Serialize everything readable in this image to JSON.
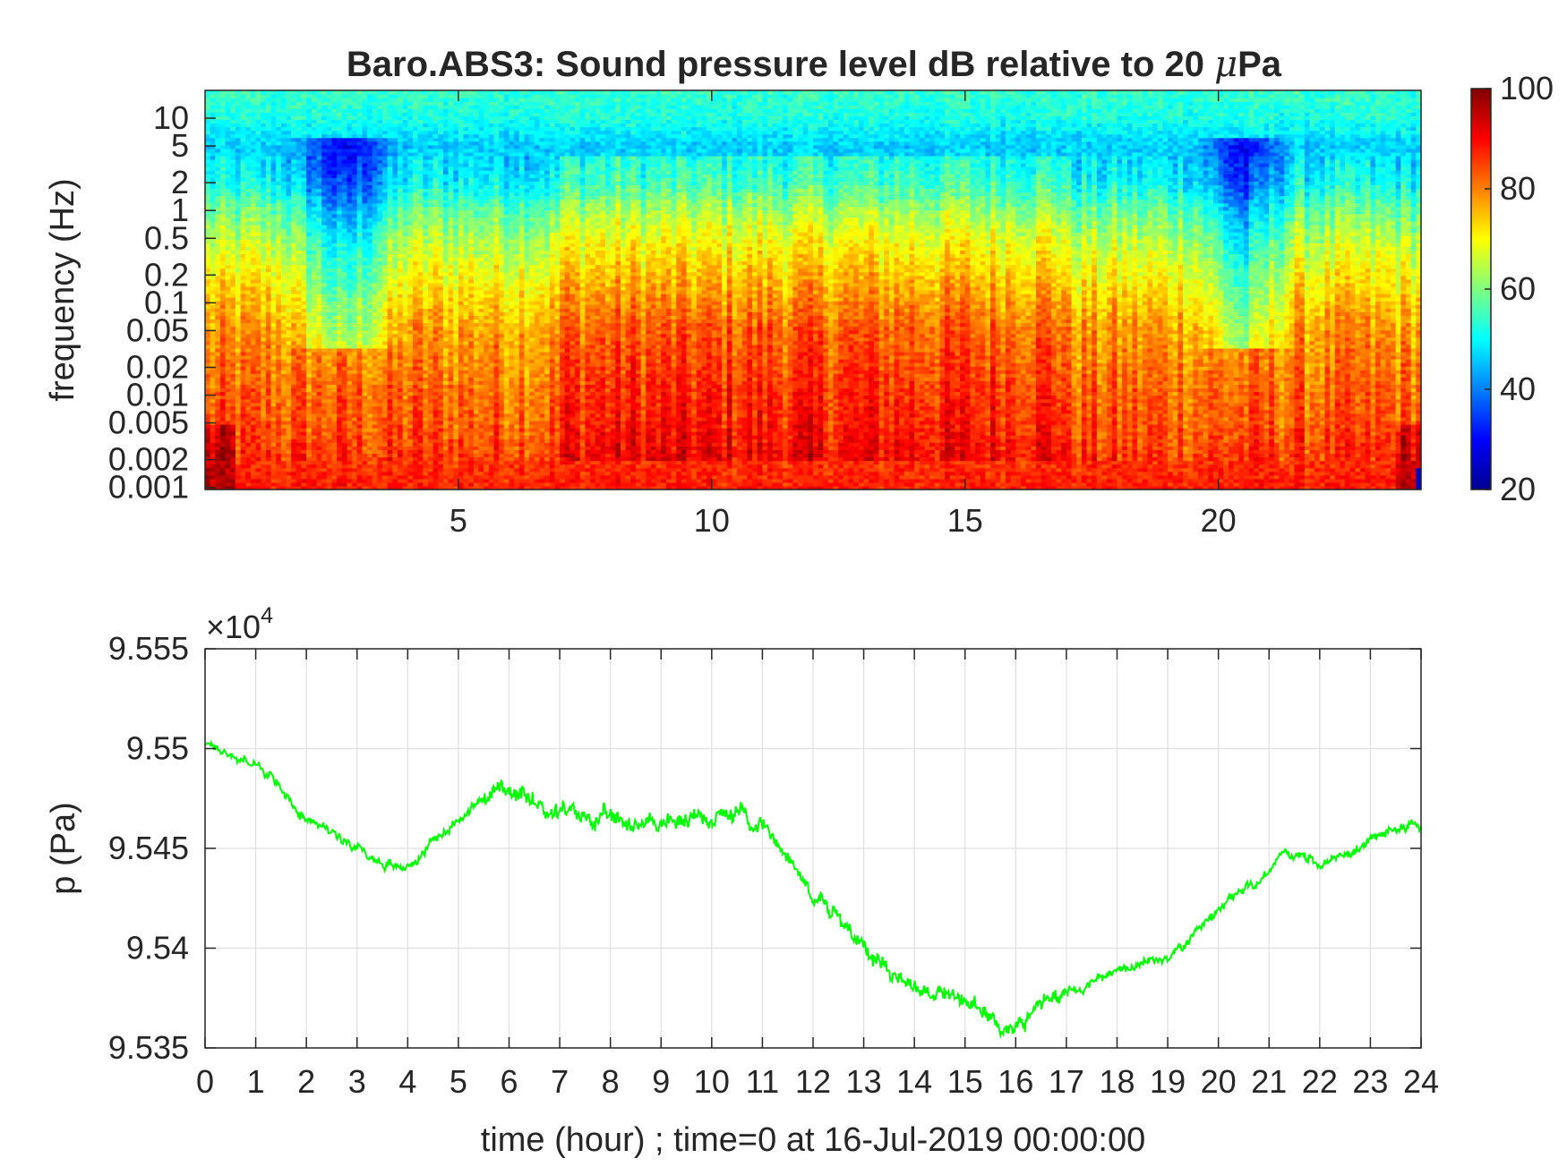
{
  "chart_data": [
    {
      "type": "heatmap",
      "title": "Baro.ABS3: Sound pressure level dB relative to 20 μPa",
      "title_main": "Baro.ABS3: Sound pressure level dB relative to 20 ",
      "title_mu": "μ",
      "title_end": "Pa",
      "ylabel": "frequency (Hz)",
      "xlabel": "",
      "xlim": [
        0,
        24
      ],
      "x_ticks": [
        5,
        10,
        15,
        20
      ],
      "x_tick_labels": [
        "5",
        "10",
        "15",
        "20"
      ],
      "y_scale": "log",
      "y_ticks": [
        0.001,
        0.002,
        0.005,
        0.01,
        0.02,
        0.05,
        0.1,
        0.2,
        0.5,
        1,
        2,
        5,
        10
      ],
      "y_tick_labels": [
        "0.001",
        "0.002",
        "0.005",
        "0.01",
        "0.02",
        "0.05",
        "0.1",
        "0.2",
        "0.5",
        "1",
        "2",
        "5",
        "10"
      ],
      "ylim_hz": [
        0.00095,
        20
      ],
      "colormap": "jet",
      "clim": [
        20,
        100
      ],
      "colorbar_ticks": [
        20,
        40,
        60,
        80,
        100
      ],
      "colorbar_tick_labels": [
        "20",
        "40",
        "60",
        "80",
        "100"
      ],
      "level_profile_db": {
        "frequency_hz": [
          0.001,
          0.002,
          0.005,
          0.01,
          0.02,
          0.05,
          0.1,
          0.2,
          0.5,
          1,
          2,
          5,
          10,
          20
        ],
        "typical_db": [
          88,
          86,
          83,
          82,
          80,
          78,
          74,
          70,
          64,
          58,
          50,
          46,
          52,
          54
        ]
      },
      "quiet_periods_hours": [
        [
          1.5,
          4.0
        ],
        [
          19.5,
          21.5
        ]
      ],
      "loudest_period_hours": [
        7,
        17
      ]
    },
    {
      "type": "line",
      "title": "",
      "xlabel": "time (hour) ; time=0 at 16-Jul-2019 00:00:00",
      "ylabel": "p (Pa)",
      "exponent_label_base": "×10",
      "exponent_label_power": "4",
      "xlim": [
        0,
        24
      ],
      "ylim": [
        95350,
        95550
      ],
      "x_ticks": [
        0,
        1,
        2,
        3,
        4,
        5,
        6,
        7,
        8,
        9,
        10,
        11,
        12,
        13,
        14,
        15,
        16,
        17,
        18,
        19,
        20,
        21,
        22,
        23,
        24
      ],
      "x_tick_labels": [
        "0",
        "1",
        "2",
        "3",
        "4",
        "5",
        "6",
        "7",
        "8",
        "9",
        "10",
        "11",
        "12",
        "13",
        "14",
        "15",
        "16",
        "17",
        "18",
        "19",
        "20",
        "21",
        "22",
        "23",
        "24"
      ],
      "y_ticks": [
        95350,
        95400,
        95450,
        95500,
        95550
      ],
      "y_tick_labels": [
        "9.535",
        "9.54",
        "9.545",
        "9.55",
        "9.555"
      ],
      "grid": true,
      "color": "#00ff00",
      "series": [
        {
          "x": [
            0,
            0.5,
            1,
            1.5,
            1.8,
            2,
            2.5,
            3,
            3.3,
            3.6,
            3.9,
            4.2,
            4.5,
            5,
            5.5,
            5.8,
            6,
            6.5,
            7,
            7.5,
            8,
            8.5,
            9,
            9.5,
            10,
            10.3,
            10.6,
            11,
            11.3,
            11.6,
            12,
            12.5,
            13,
            13.5,
            14,
            14.5,
            15,
            15.5,
            15.8,
            16,
            16.3,
            16.6,
            17,
            17.5,
            18,
            18.5,
            19,
            19.5,
            20,
            20.5,
            20.8,
            21,
            21.3,
            21.6,
            22,
            22.3,
            22.6,
            23,
            23.5,
            23.8,
            24
          ],
          "y": [
            95503,
            95497,
            95492,
            95480,
            95470,
            95466,
            95458,
            95452,
            95445,
            95442,
            95440,
            95445,
            95454,
            95465,
            95475,
            95480,
            95476,
            95472,
            95468,
            95466,
            95464,
            95463,
            95463,
            95464,
            95466,
            95469,
            95467,
            95462,
            95455,
            95442,
            95428,
            95414,
            95402,
            95390,
            95382,
            95377,
            95373,
            95366,
            95360,
            95362,
            95368,
            95374,
            95378,
            95383,
            95388,
            95392,
            95395,
            95405,
            95418,
            95430,
            95433,
            95440,
            95448,
            95446,
            95442,
            95445,
            95448,
            95453,
            95460,
            95463,
            95459
          ]
        }
      ]
    }
  ]
}
